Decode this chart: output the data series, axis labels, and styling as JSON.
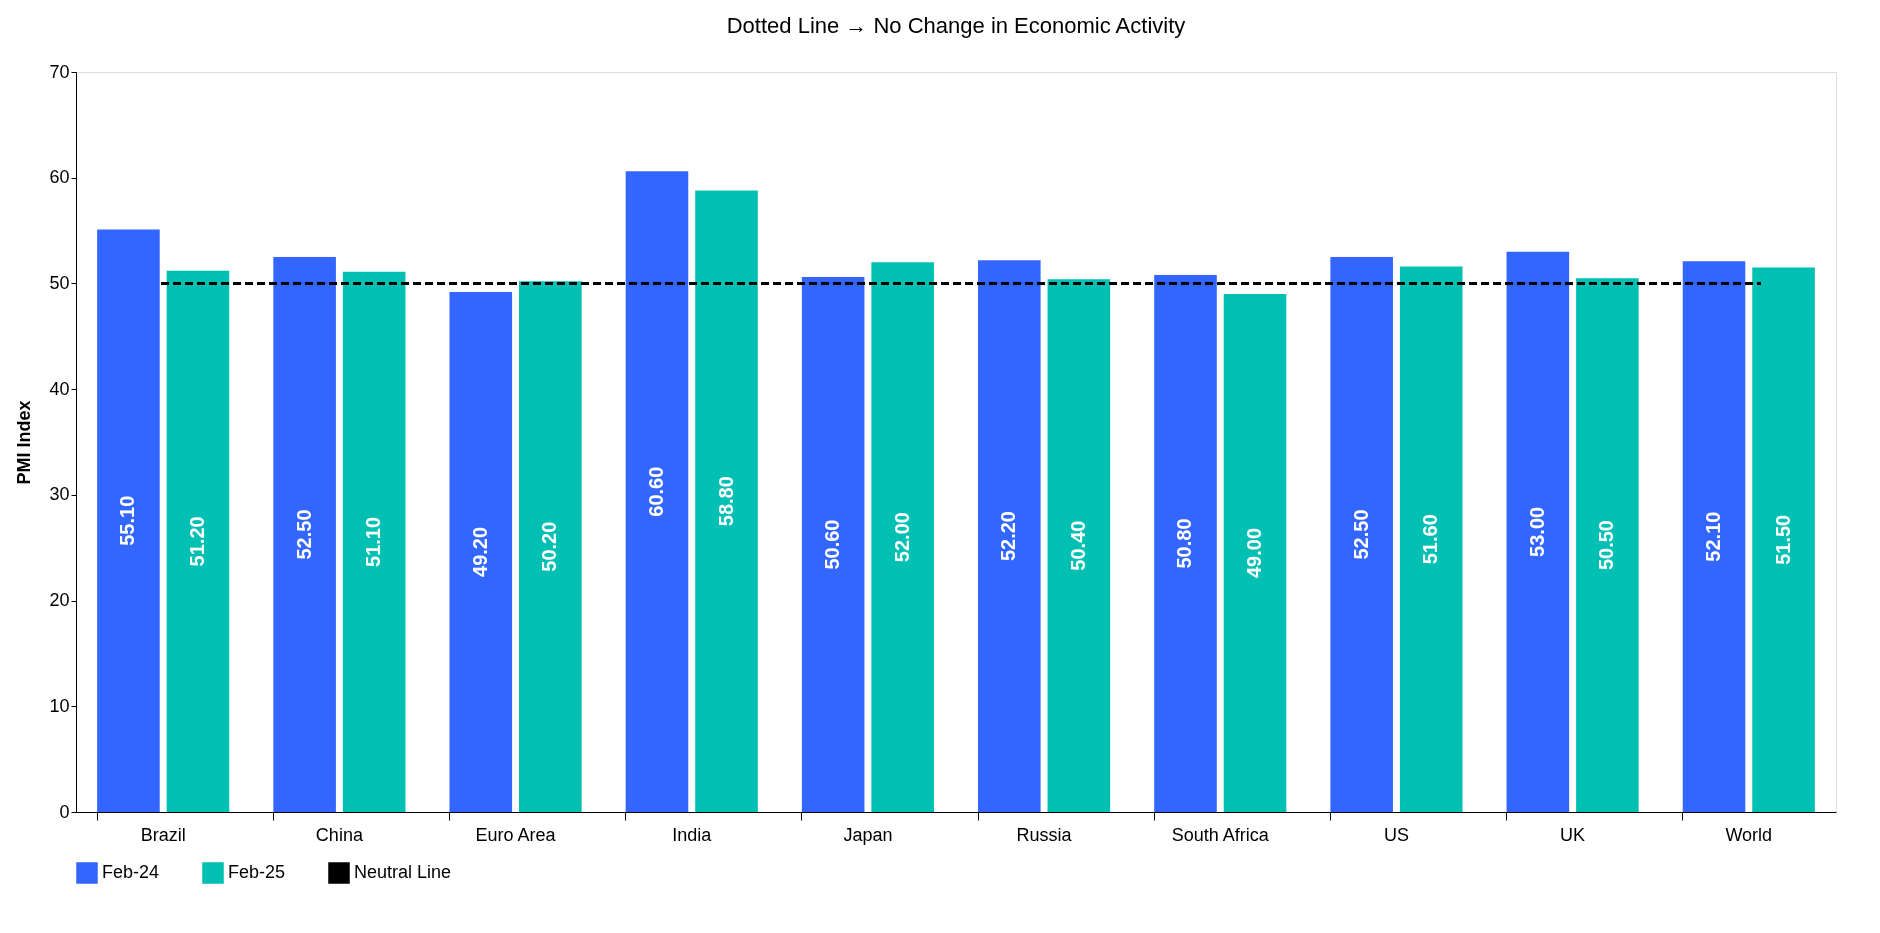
{
  "chart_data": {
    "type": "bar",
    "title": "Dotted Line → No Change in Economic Activity",
    "ylabel": "PMI Index",
    "categories": [
      "Brazil",
      "China",
      "Euro Area",
      "India",
      "Japan",
      "Russia",
      "South Africa",
      "US",
      "UK",
      "World"
    ],
    "series": [
      {
        "name": "Feb-24",
        "color": "#3366ff",
        "values": [
          55.1,
          52.5,
          49.2,
          60.6,
          50.6,
          52.2,
          50.8,
          52.5,
          53.0,
          52.1
        ],
        "value_labels": [
          "55.10",
          "52.50",
          "49.20",
          "60.60",
          "50.60",
          "52.20",
          "50.80",
          "52.50",
          "53.00",
          "52.10"
        ]
      },
      {
        "name": "Feb-25",
        "color": "#00bfb3",
        "values": [
          51.2,
          51.1,
          50.2,
          58.8,
          52.0,
          50.4,
          49.0,
          51.6,
          50.5,
          51.5
        ],
        "value_labels": [
          "51.20",
          "51.10",
          "50.20",
          "58.80",
          "52.00",
          "50.40",
          "49.00",
          "51.60",
          "50.50",
          "51.50"
        ]
      }
    ],
    "ylim": [
      0,
      70
    ],
    "yticks": [
      0,
      10,
      20,
      30,
      40,
      50,
      60,
      70
    ],
    "ref_lines": [
      {
        "axis": "y",
        "value": 50,
        "label": "Neutral Line",
        "color": "#000000",
        "line_style": "dashed"
      }
    ],
    "grid": false,
    "legend": "bottom"
  }
}
